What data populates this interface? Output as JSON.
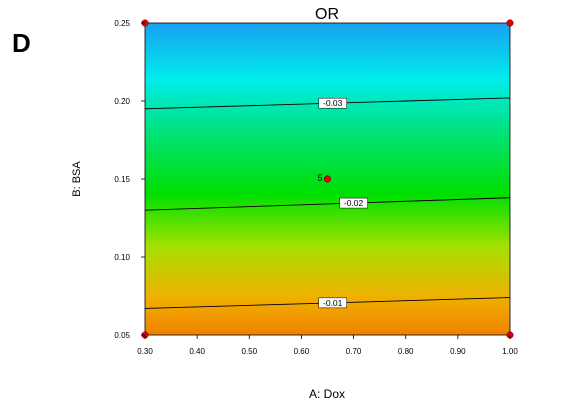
{
  "panel_label": "D",
  "chart_data": {
    "type": "contour",
    "title": "OR",
    "xlabel": "A: Dox",
    "ylabel": "B: BSA",
    "xlim": [
      0.3,
      1.0
    ],
    "ylim": [
      0.05,
      0.25
    ],
    "x_ticks": [
      0.3,
      0.4,
      0.5,
      0.6,
      0.7,
      0.8,
      0.9,
      1.0
    ],
    "x_tick_labels": [
      "0.30",
      "0.40",
      "0.50",
      "0.60",
      "0.70",
      "0.80",
      "0.90",
      "1.00"
    ],
    "y_ticks": [
      0.05,
      0.1,
      0.15,
      0.2,
      0.25
    ],
    "y_tick_labels": [
      "0.05",
      "0.10",
      "0.15",
      "0.20",
      "0.25"
    ],
    "contours": [
      {
        "label": "-0.03",
        "points": [
          [
            0.3,
            0.195
          ],
          [
            1.0,
            0.202
          ]
        ],
        "label_x": 0.66
      },
      {
        "label": "-0.02",
        "points": [
          [
            0.3,
            0.13
          ],
          [
            1.0,
            0.138
          ]
        ],
        "label_x": 0.7
      },
      {
        "label": "-0.01",
        "points": [
          [
            0.3,
            0.067
          ],
          [
            1.0,
            0.074
          ]
        ],
        "label_x": 0.66
      }
    ],
    "design_points": [
      {
        "x": 0.3,
        "y": 0.25
      },
      {
        "x": 1.0,
        "y": 0.25
      },
      {
        "x": 0.3,
        "y": 0.05
      },
      {
        "x": 1.0,
        "y": 0.05
      },
      {
        "x": 0.65,
        "y": 0.15,
        "label": "5"
      }
    ],
    "colors": {
      "gradient": [
        "#1aa0f0",
        "#00ecec",
        "#00e020",
        "#00e000",
        "#b0e000",
        "#f0b000",
        "#f08000"
      ],
      "point": "#e00000",
      "contour_line": "#000000"
    }
  }
}
